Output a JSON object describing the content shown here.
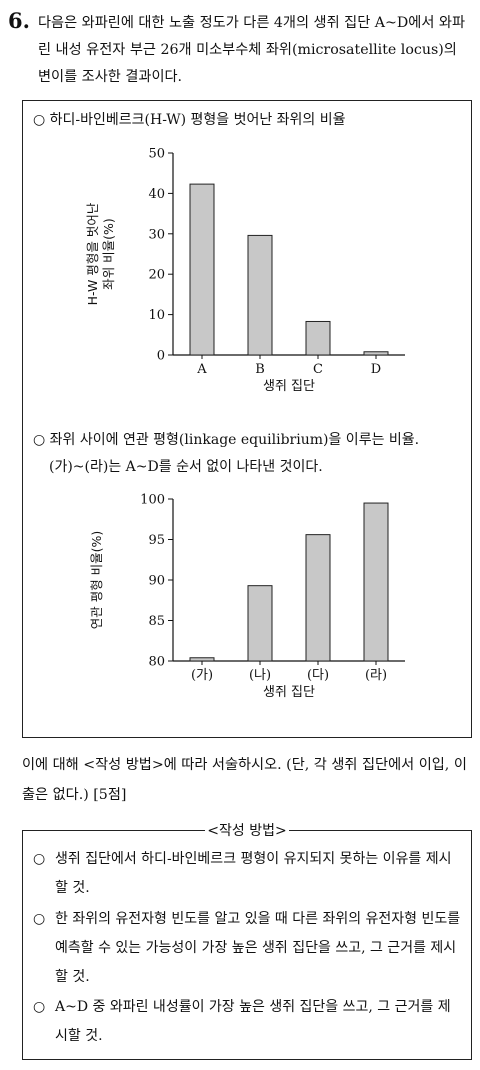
{
  "question": {
    "number": "6.",
    "intro": "다음은 와파린에 대한 노출 정도가 다른 4개의 생쥐 집단 A~D에서 와파린 내성 유전자 부근 26개 미소부수체 좌위(microsatellite locus)의 변이를 조사한 결과이다."
  },
  "data_box": {
    "bullet1": "○ 하디-바인베르크(H-W) 평형을 벗어난 좌위의 비율",
    "bullet2_line1": "○ 좌위 사이에 연관 평형(linkage equilibrium)을 이루는 비율.",
    "bullet2_line2": "(가)~(라)는 A~D를 순서 없이 나타낸 것이다."
  },
  "chart_data": [
    {
      "type": "bar",
      "categories": [
        "A",
        "B",
        "C",
        "D"
      ],
      "values": [
        42.3,
        29.6,
        8.3,
        0.8
      ],
      "ylim": [
        0,
        50
      ],
      "yticks": [
        "0",
        "10",
        "20",
        "30",
        "40",
        "50"
      ],
      "ylabel_line1": "H-W 평형을 벗어난",
      "ylabel_line2": "좌위 비율(%)",
      "xlabel": "생쥐 집단",
      "grid": false,
      "bar_color": "#c8c8c8"
    },
    {
      "type": "bar",
      "categories": [
        "(가)",
        "(나)",
        "(다)",
        "(라)"
      ],
      "values": [
        80.4,
        89.3,
        95.6,
        99.5
      ],
      "ylim": [
        80,
        100
      ],
      "yticks": [
        "80",
        "85",
        "90",
        "95",
        "100"
      ],
      "ylabel": "연관 평형 비율(%)",
      "xlabel": "생쥐 집단",
      "grid": false,
      "bar_color": "#c8c8c8"
    }
  ],
  "instruction": "이에 대해 <작성 방법>에 따라 서술하시오. (단, 각 생쥐 집단에서 이입, 이출은 없다.) [5점]",
  "method": {
    "title": "<작성 방법>",
    "items": [
      "생쥐 집단에서 하디-바인베르크 평형이 유지되지 못하는 이유를 제시할 것.",
      "한 좌위의 유전자형 빈도를 알고 있을 때 다른 좌위의 유전자형 빈도를 예측할 수 있는 가능성이 가장 높은 생쥐 집단을 쓰고, 그 근거를 제시할 것.",
      "A~D 중 와파린 내성률이 가장 높은 생쥐 집단을 쓰고, 그 근거를 제시할 것."
    ],
    "bullet": "○"
  }
}
